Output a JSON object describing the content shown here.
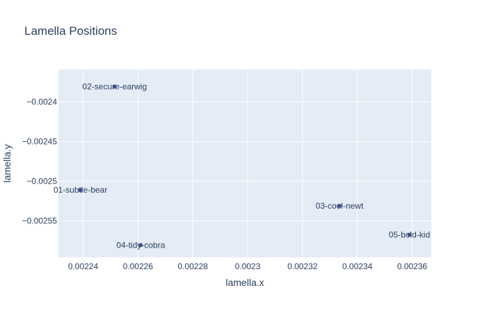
{
  "chart_data": {
    "type": "scatter",
    "title": "Lamella Positions",
    "xlabel": "lamella.x",
    "ylabel": "lamella.y",
    "xlim": [
      0.002231,
      0.002367
    ],
    "ylim": [
      -0.002596,
      -0.002359
    ],
    "x_ticks": [
      0.00224,
      0.00226,
      0.00228,
      0.0023,
      0.00232,
      0.00234,
      0.00236
    ],
    "x_tick_labels": [
      "0.00224",
      "0.00226",
      "0.00228",
      "0.0023",
      "0.00232",
      "0.00234",
      "0.00236"
    ],
    "y_ticks": [
      -0.0024,
      -0.00245,
      -0.0025,
      -0.00255
    ],
    "y_tick_labels": [
      "−0.0024",
      "−0.00245",
      "−0.0025",
      "−0.00255"
    ],
    "grid": true,
    "marker_color": "#4a58a6",
    "points": [
      {
        "label": "02-secure-earwig",
        "x": 0.0022515,
        "y": -0.0023805
      },
      {
        "label": "01-subtle-bear",
        "x": 0.002239,
        "y": -0.002511
      },
      {
        "label": "03-cool-newt",
        "x": 0.0023335,
        "y": -0.002531
      },
      {
        "label": "04-tidy-cobra",
        "x": 0.002261,
        "y": -0.0025805
      },
      {
        "label": "05-bold-kid",
        "x": 0.002359,
        "y": -0.0025675
      }
    ]
  }
}
